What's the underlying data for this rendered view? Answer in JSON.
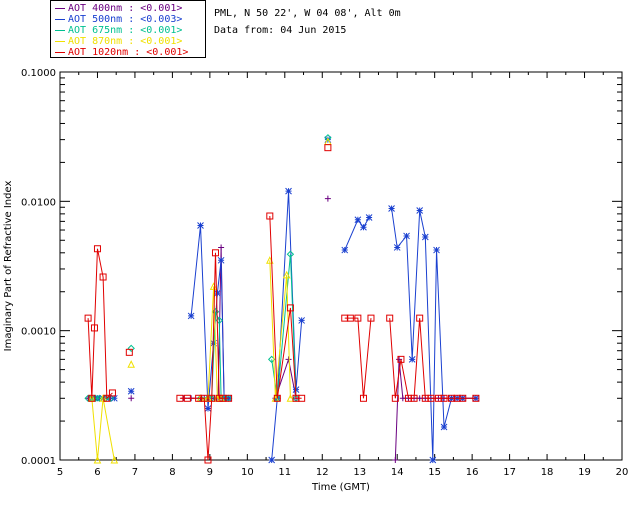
{
  "header": {
    "site": "PML, N 50 22', W 04 08', Alt 0m",
    "date": "Data from: 04 Jun 2015"
  },
  "legend": [
    {
      "label": "AOT  400nm : <0.001>",
      "color": "#6a0080"
    },
    {
      "label": "AOT  500nm : <0.003>",
      "color": "#1a40d0"
    },
    {
      "label": "AOT  675nm : <0.001>",
      "color": "#00c090"
    },
    {
      "label": "AOT  870nm : <0.001>",
      "color": "#f0e000"
    },
    {
      "label": "AOT 1020nm : <0.001>",
      "color": "#e00000"
    }
  ],
  "chart_data": {
    "type": "line",
    "xlabel": "Time (GMT)",
    "ylabel": "Imaginary Part of Refractive Index",
    "xlim": [
      5,
      20
    ],
    "ylim": [
      0.0001,
      0.1
    ],
    "yscale": "log",
    "xticks": [
      "5",
      "6",
      "7",
      "8",
      "9",
      "10",
      "11",
      "12",
      "13",
      "14",
      "15",
      "16",
      "17",
      "18",
      "19",
      "20"
    ],
    "yticks": [
      {
        "value": 0.0001,
        "label": "0.0001"
      },
      {
        "value": 0.001,
        "label": "0.0010"
      },
      {
        "value": 0.01,
        "label": "0.0100"
      },
      {
        "value": 0.1,
        "label": "0.1000"
      }
    ],
    "series": [
      {
        "name": "AOT 400nm",
        "color": "#6a0080",
        "marker": "plus",
        "points": [
          [
            5.75,
            0.0003
          ],
          [
            5.85,
            0.0003
          ],
          [
            5.95,
            0.0003
          ],
          [
            6.05,
            0.0003
          ],
          [
            6.2,
            0.0003
          ],
          [
            6.35,
            0.0003
          ],
          null,
          [
            6.9,
            0.0003
          ],
          null,
          [
            8.3,
            0.0003
          ],
          [
            8.5,
            0.0003
          ],
          [
            8.75,
            0.0003
          ],
          [
            8.85,
            0.0003
          ],
          [
            8.95,
            0.0003
          ],
          [
            9.05,
            0.0003
          ],
          [
            9.12,
            0.0003
          ],
          [
            9.18,
            0.0003
          ],
          [
            9.22,
            0.0003
          ],
          [
            9.3,
            0.0044
          ],
          [
            9.38,
            0.0003
          ],
          [
            9.5,
            0.0003
          ],
          null,
          [
            10.75,
            0.0003
          ],
          [
            11.1,
            0.0006
          ],
          [
            11.3,
            0.0003
          ],
          null,
          [
            12.15,
            0.0105
          ],
          null,
          [
            13.95,
            0.0001
          ],
          [
            14.05,
            0.0006
          ],
          [
            14.15,
            0.0003
          ],
          [
            14.3,
            0.0003
          ],
          [
            14.45,
            0.0003
          ],
          [
            14.6,
            0.0003
          ],
          [
            14.75,
            0.0003
          ],
          [
            14.9,
            0.0003
          ],
          [
            15.1,
            0.0003
          ],
          [
            15.25,
            0.0003
          ],
          [
            15.45,
            0.0003
          ],
          [
            15.6,
            0.0003
          ],
          [
            15.75,
            0.0003
          ],
          [
            16.1,
            0.0003
          ]
        ]
      },
      {
        "name": "AOT 500nm",
        "color": "#1a40d0",
        "marker": "asterisk",
        "points": [
          [
            5.85,
            0.0003
          ],
          [
            6.0,
            0.0003
          ],
          [
            6.15,
            0.0003
          ],
          [
            6.3,
            0.0003
          ],
          [
            6.45,
            0.0003
          ],
          null,
          [
            6.9,
            0.00034
          ],
          null,
          [
            8.5,
            0.0013
          ],
          [
            8.75,
            0.0065
          ],
          [
            8.95,
            0.00025
          ],
          [
            9.1,
            0.0008
          ],
          [
            9.2,
            0.00195
          ],
          [
            9.3,
            0.0035
          ],
          [
            9.38,
            0.0003
          ],
          [
            9.5,
            0.0003
          ],
          null,
          [
            10.65,
            0.0001
          ],
          [
            10.8,
            0.0003
          ],
          [
            11.1,
            0.012
          ],
          [
            11.3,
            0.00035
          ],
          [
            11.45,
            0.0012
          ],
          null,
          [
            12.15,
            0.03
          ],
          null,
          [
            12.6,
            0.0042
          ],
          [
            12.95,
            0.0072
          ],
          [
            13.1,
            0.0063
          ],
          [
            13.25,
            0.0075
          ],
          null,
          [
            13.85,
            0.0088
          ],
          [
            14.0,
            0.0044
          ],
          [
            14.25,
            0.0054
          ],
          [
            14.4,
            0.0006
          ],
          [
            14.6,
            0.0085
          ],
          [
            14.75,
            0.0053
          ],
          [
            14.95,
            0.0001
          ],
          [
            15.05,
            0.0042
          ],
          [
            15.25,
            0.00018
          ],
          [
            15.45,
            0.0003
          ],
          [
            15.6,
            0.0003
          ],
          [
            15.75,
            0.0003
          ],
          [
            16.1,
            0.0003
          ]
        ]
      },
      {
        "name": "AOT 675nm",
        "color": "#00c090",
        "marker": "diamond",
        "points": [
          [
            5.75,
            0.0003
          ],
          [
            5.85,
            0.0003
          ],
          [
            5.95,
            0.0003
          ],
          [
            6.05,
            0.0003
          ],
          [
            6.2,
            0.0003
          ],
          [
            6.35,
            0.0003
          ],
          null,
          [
            6.9,
            0.00073
          ],
          null,
          [
            8.75,
            0.0003
          ],
          [
            8.95,
            0.0003
          ],
          [
            9.05,
            0.0003
          ],
          [
            9.15,
            0.0014
          ],
          [
            9.25,
            0.0012
          ],
          [
            9.3,
            0.0003
          ],
          [
            9.38,
            0.0003
          ],
          [
            9.5,
            0.0003
          ],
          null,
          [
            10.65,
            0.0006
          ],
          [
            10.8,
            0.0003
          ],
          [
            11.15,
            0.0039
          ],
          [
            11.3,
            0.0003
          ],
          null,
          [
            12.15,
            0.031
          ]
        ]
      },
      {
        "name": "AOT 870nm",
        "color": "#f0e000",
        "marker": "triangle",
        "points": [
          [
            5.85,
            0.0003
          ],
          [
            6.0,
            0.0001
          ],
          [
            6.15,
            0.0003
          ],
          [
            6.45,
            0.0001
          ],
          null,
          [
            6.9,
            0.00055
          ],
          null,
          [
            8.75,
            0.0003
          ],
          [
            8.95,
            0.0003
          ],
          [
            9.1,
            0.0022
          ],
          [
            9.2,
            0.0003
          ],
          [
            9.3,
            0.0003
          ],
          null,
          [
            10.6,
            0.0035
          ],
          [
            10.75,
            0.0003
          ],
          [
            11.05,
            0.0027
          ],
          [
            11.15,
            0.0003
          ],
          null,
          [
            12.15,
            0.029
          ]
        ]
      },
      {
        "name": "AOT 1020nm",
        "color": "#e00000",
        "marker": "square",
        "points": [
          [
            5.75,
            0.00125
          ],
          [
            5.85,
            0.0003
          ],
          [
            5.92,
            0.00105
          ],
          [
            6.0,
            0.0043
          ],
          [
            6.15,
            0.0026
          ],
          [
            6.25,
            0.0003
          ],
          [
            6.4,
            0.00033
          ],
          null,
          [
            6.85,
            0.00068
          ],
          null,
          [
            8.2,
            0.0003
          ],
          [
            8.4,
            0.0003
          ],
          [
            8.7,
            0.0003
          ],
          [
            8.85,
            0.0003
          ],
          [
            8.95,
            0.0001
          ],
          [
            9.05,
            0.0003
          ],
          [
            9.15,
            0.004
          ],
          [
            9.25,
            0.0003
          ],
          [
            9.35,
            0.0003
          ],
          [
            9.5,
            0.0003
          ],
          null,
          [
            10.6,
            0.0077
          ],
          [
            10.8,
            0.0003
          ],
          [
            11.15,
            0.0015
          ],
          [
            11.3,
            0.0003
          ],
          [
            11.45,
            0.0003
          ],
          null,
          [
            12.15,
            0.026
          ],
          null,
          [
            12.6,
            0.00125
          ],
          [
            12.75,
            0.00125
          ],
          [
            12.95,
            0.00125
          ],
          [
            13.1,
            0.0003
          ],
          [
            13.3,
            0.00125
          ],
          null,
          [
            13.8,
            0.00125
          ],
          [
            13.95,
            0.0003
          ],
          [
            14.1,
            0.0006
          ],
          [
            14.3,
            0.0003
          ],
          [
            14.45,
            0.0003
          ],
          [
            14.6,
            0.00125
          ],
          [
            14.75,
            0.0003
          ],
          [
            14.9,
            0.0003
          ],
          [
            15.1,
            0.0003
          ],
          [
            15.25,
            0.0003
          ],
          [
            15.45,
            0.0003
          ],
          [
            15.6,
            0.0003
          ],
          [
            15.75,
            0.0003
          ],
          [
            16.1,
            0.0003
          ]
        ]
      }
    ]
  }
}
